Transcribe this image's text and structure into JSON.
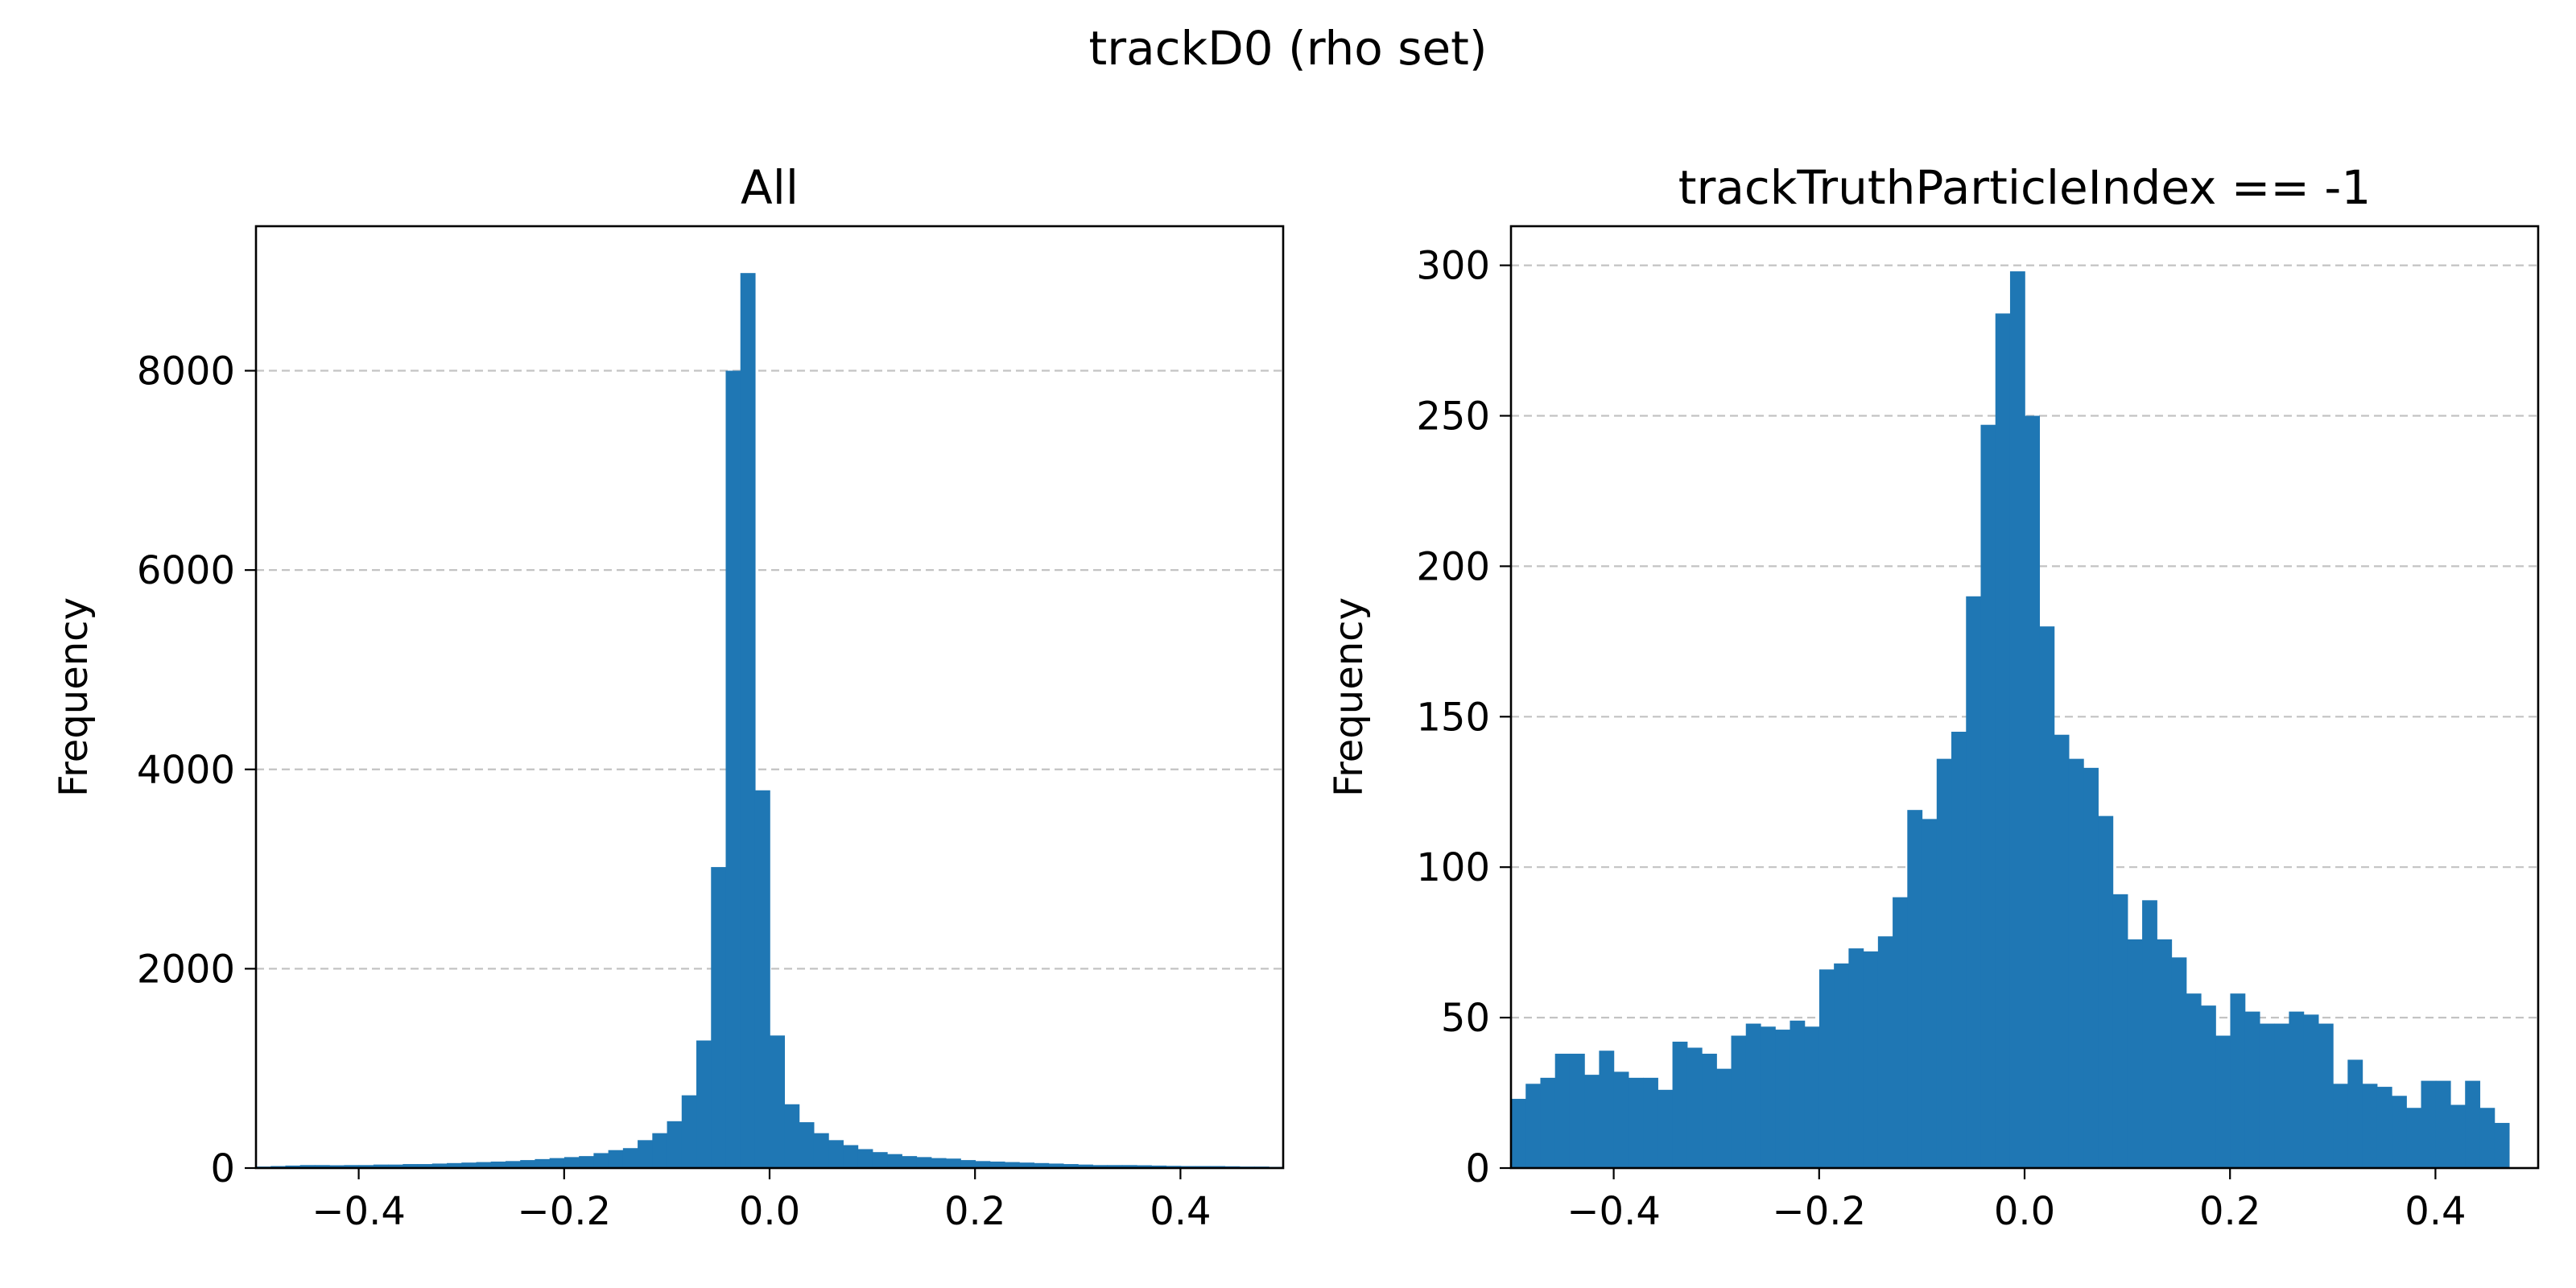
{
  "figure": {
    "title": "trackD0  (rho set)"
  },
  "chart_data": [
    {
      "type": "bar",
      "title": "All",
      "xlabel": "",
      "ylabel": "Frequency",
      "xlim": [
        -0.5,
        0.5
      ],
      "ylim": [
        0,
        9450
      ],
      "bin_start": -0.5,
      "bin_width": 0.01429,
      "xticks": [
        -0.4,
        -0.2,
        0.0,
        0.2,
        0.4
      ],
      "xtick_labels": [
        "−0.4",
        "−0.2",
        "0.0",
        "0.2",
        "0.4"
      ],
      "yticks": [
        0,
        2000,
        4000,
        6000,
        8000
      ],
      "ytick_labels": [
        "0",
        "2000",
        "4000",
        "6000",
        "8000"
      ],
      "grid": "y-dashed",
      "color": "#1f77b4",
      "values": [
        15,
        20,
        25,
        30,
        30,
        28,
        30,
        30,
        35,
        35,
        40,
        40,
        45,
        50,
        55,
        60,
        65,
        70,
        80,
        90,
        100,
        110,
        120,
        150,
        180,
        200,
        280,
        350,
        470,
        730,
        1280,
        3020,
        8000,
        8980,
        3790,
        1330,
        640,
        460,
        350,
        280,
        230,
        190,
        160,
        140,
        120,
        110,
        100,
        95,
        80,
        70,
        65,
        60,
        55,
        50,
        45,
        40,
        35,
        30,
        30,
        30,
        28,
        25,
        22,
        20,
        20,
        20,
        18,
        15,
        15,
        12
      ]
    },
    {
      "type": "bar",
      "title": "trackTruthParticleIndex == -1",
      "xlabel": "",
      "ylabel": "Frequency",
      "xlim": [
        -0.5,
        0.5
      ],
      "ylim": [
        0,
        313
      ],
      "bin_start": -0.5,
      "bin_width": 0.01429,
      "xticks": [
        -0.4,
        -0.2,
        0.0,
        0.2,
        0.4
      ],
      "xtick_labels": [
        "−0.4",
        "−0.2",
        "0.0",
        "0.2",
        "0.4"
      ],
      "yticks": [
        0,
        50,
        100,
        150,
        200,
        250,
        300
      ],
      "ytick_labels": [
        "0",
        "50",
        "100",
        "150",
        "200",
        "250",
        "300"
      ],
      "grid": "y-dashed",
      "color": "#1f77b4",
      "values": [
        23,
        28,
        30,
        38,
        38,
        31,
        39,
        32,
        30,
        30,
        26,
        42,
        40,
        38,
        33,
        44,
        48,
        47,
        46,
        49,
        47,
        66,
        68,
        73,
        72,
        77,
        90,
        119,
        116,
        136,
        145,
        190,
        247,
        284,
        298,
        250,
        180,
        144,
        136,
        133,
        117,
        91,
        76,
        89,
        76,
        70,
        58,
        54,
        44,
        58,
        52,
        48,
        48,
        52,
        51,
        48,
        28,
        36,
        28,
        27,
        24,
        20,
        29,
        29,
        21,
        29,
        20,
        15
      ]
    }
  ]
}
